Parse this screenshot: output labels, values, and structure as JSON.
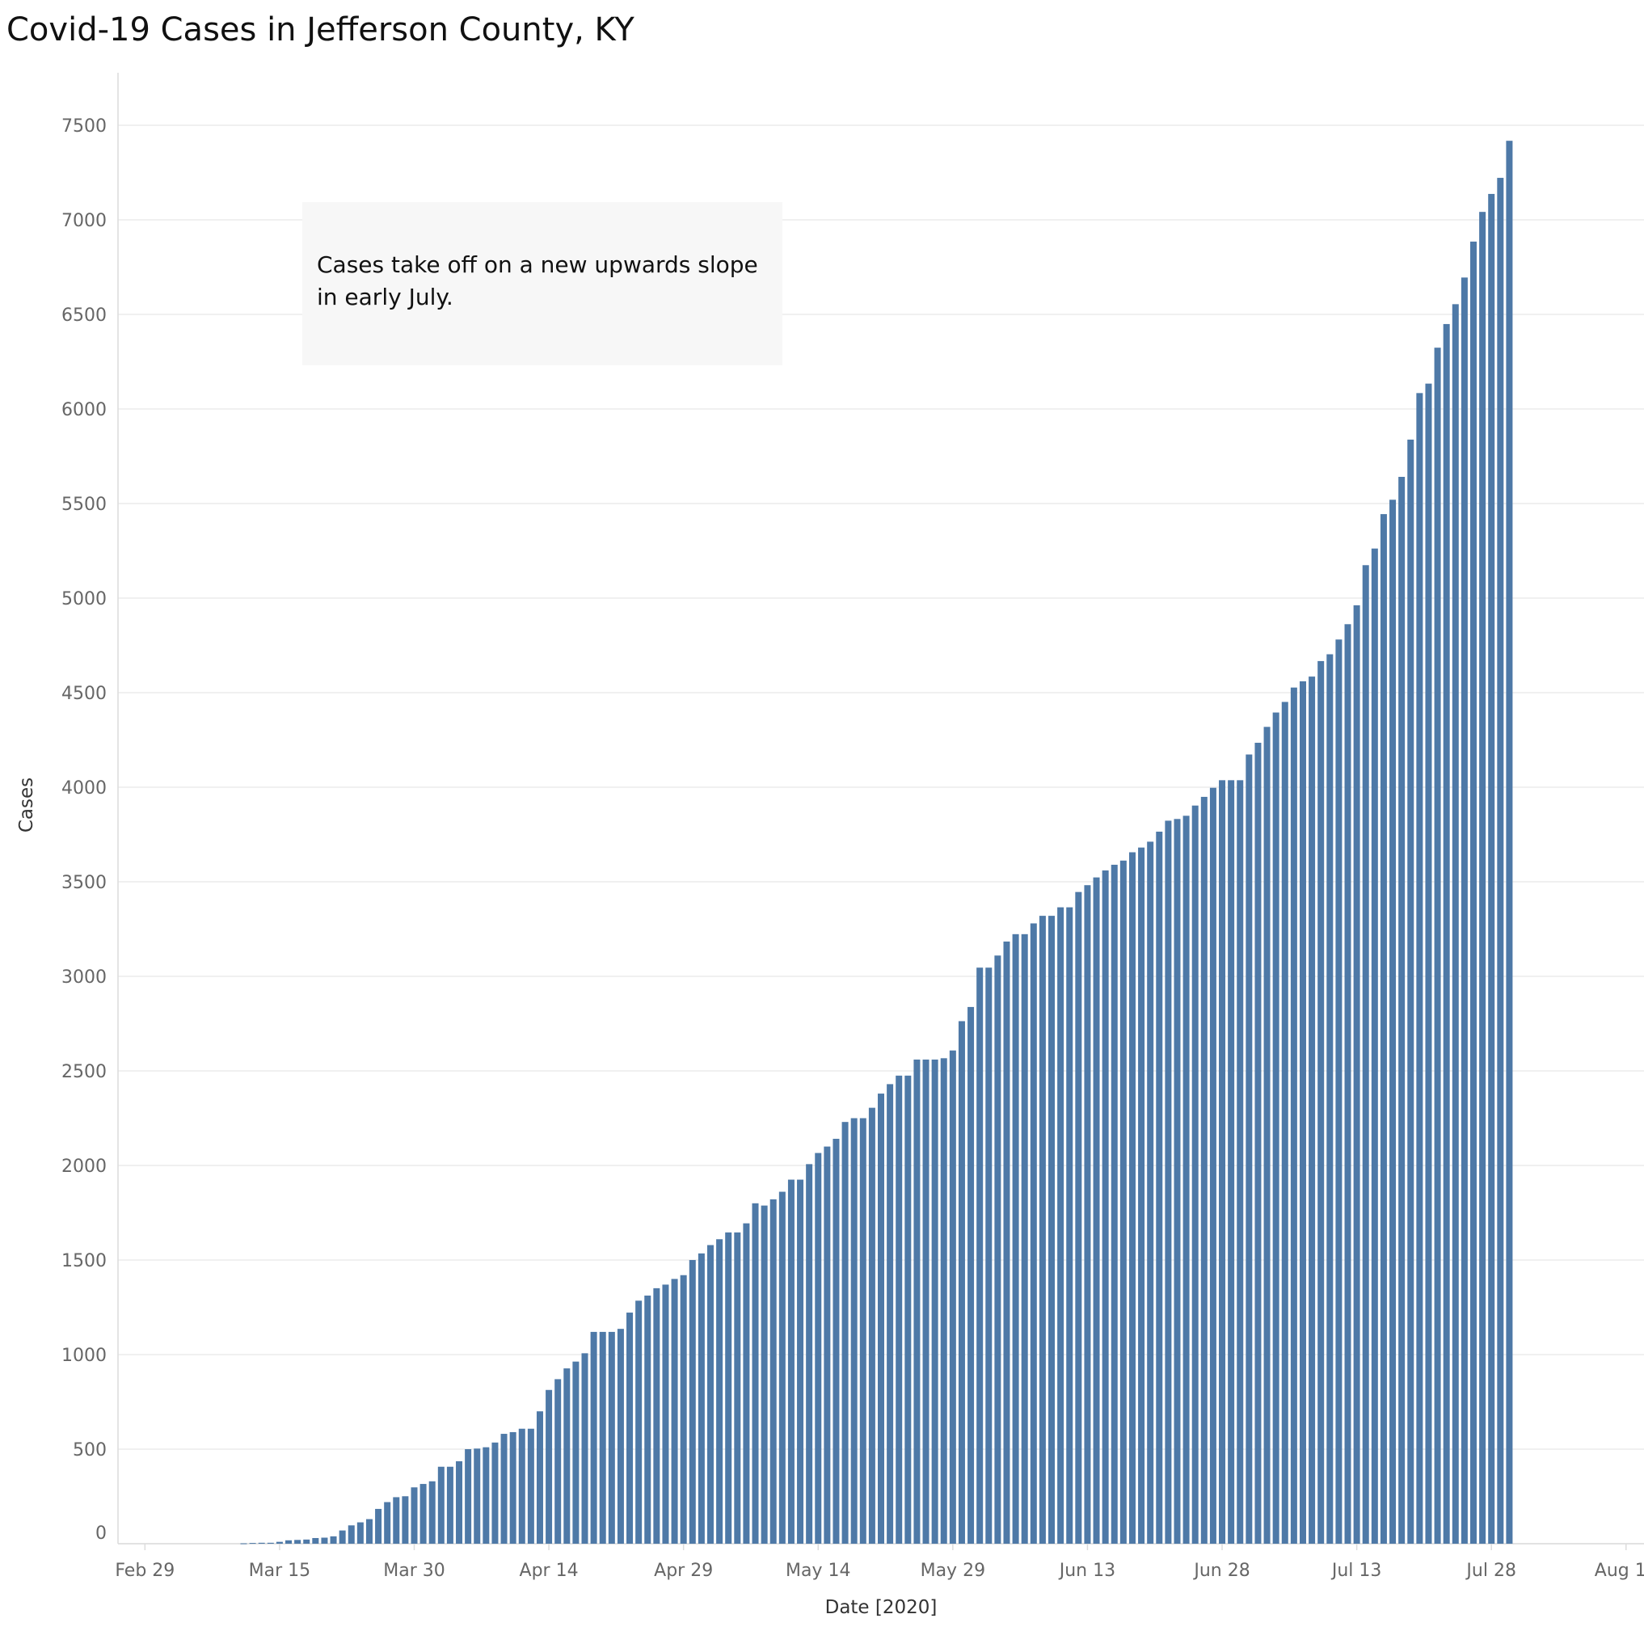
{
  "chart_data": {
    "type": "bar",
    "title": "Covid-19 Cases in Jefferson County, KY",
    "xlabel": "Date [2020]",
    "ylabel": "Cases",
    "ylim": [
      0,
      7500
    ],
    "yticks": [
      0,
      500,
      1000,
      1500,
      2000,
      2500,
      3000,
      3500,
      4000,
      4500,
      5000,
      5500,
      6000,
      6500,
      7000,
      7500
    ],
    "xticks": [
      "Feb 29",
      "Mar 15",
      "Mar 30",
      "Apr 14",
      "Apr 29",
      "May 14",
      "May 29",
      "Jun 13",
      "Jun 28",
      "Jul 13",
      "Jul 28",
      "Aug 12"
    ],
    "x_domain": [
      "2020-02-26",
      "2020-08-14"
    ],
    "grid": true,
    "start_date": "2020-03-11",
    "values": [
      2,
      4,
      5,
      5,
      10,
      18,
      20,
      22,
      30,
      32,
      39,
      70,
      97,
      113,
      130,
      184,
      220,
      246,
      251,
      298,
      316,
      330,
      407,
      407,
      436,
      500,
      503,
      510,
      535,
      581,
      590,
      608,
      608,
      700,
      813,
      870,
      927,
      963,
      1007,
      1120,
      1120,
      1120,
      1136,
      1222,
      1285,
      1312,
      1351,
      1370,
      1400,
      1420,
      1500,
      1535,
      1579,
      1610,
      1646,
      1646,
      1694,
      1800,
      1788,
      1821,
      1861,
      1925,
      1925,
      2007,
      2066,
      2100,
      2141,
      2230,
      2250,
      2250,
      2305,
      2380,
      2430,
      2475,
      2475,
      2560,
      2560,
      2560,
      2567,
      2608,
      2763,
      2838,
      3046,
      3046,
      3110,
      3184,
      3223,
      3223,
      3280,
      3320,
      3320,
      3365,
      3365,
      3446,
      3482,
      3523,
      3560,
      3590,
      3612,
      3656,
      3681,
      3712,
      3765,
      3823,
      3832,
      3849,
      3903,
      3949,
      3997,
      4037,
      4037,
      4037,
      4173,
      4235,
      4319,
      4395,
      4451,
      4527,
      4560,
      4585,
      4667,
      4703,
      4781,
      4862,
      4962,
      5174,
      5262,
      5444,
      5520,
      5641,
      5838,
      6084,
      6134,
      6324,
      6449,
      6554,
      6695,
      6885,
      7042,
      7137,
      7222,
      7418
    ]
  },
  "annotation": {
    "line1": "Cases take off on a new upwards slope",
    "line2": "in early July."
  },
  "colors": {
    "bar": "#4e79a7",
    "gridline": "#ececec",
    "axis": "#dcdcdc",
    "annotation_bg": "#f7f7f7"
  }
}
